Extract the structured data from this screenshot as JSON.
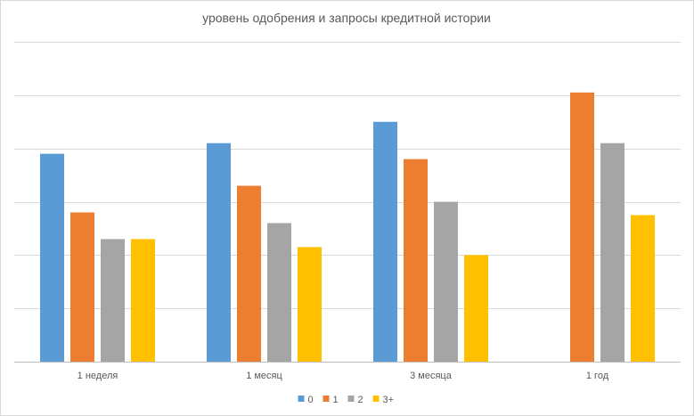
{
  "chart_data": {
    "type": "bar",
    "title": "уровень одобрения и запросы кредитной истории",
    "categories": [
      "1 неделя",
      "1 месяц",
      "3 месяца",
      "1 год"
    ],
    "series": [
      {
        "name": "0",
        "color": "#5B9BD5",
        "values": [
          3.9,
          4.1,
          4.5,
          0
        ]
      },
      {
        "name": "1",
        "color": "#ED7D31",
        "values": [
          2.8,
          3.3,
          3.8,
          5.05
        ]
      },
      {
        "name": "2",
        "color": "#A5A5A5",
        "values": [
          2.3,
          2.6,
          3.0,
          4.1
        ]
      },
      {
        "name": "3+",
        "color": "#FFC000",
        "values": [
          2.3,
          2.15,
          2.0,
          2.75
        ]
      }
    ],
    "ylim": [
      0,
      6
    ],
    "yticks": [
      0,
      1,
      2,
      3,
      4,
      5,
      6
    ],
    "ytick_labels_visible": false,
    "grid": true,
    "legend_position": "bottom",
    "xlabel": "",
    "ylabel": ""
  }
}
